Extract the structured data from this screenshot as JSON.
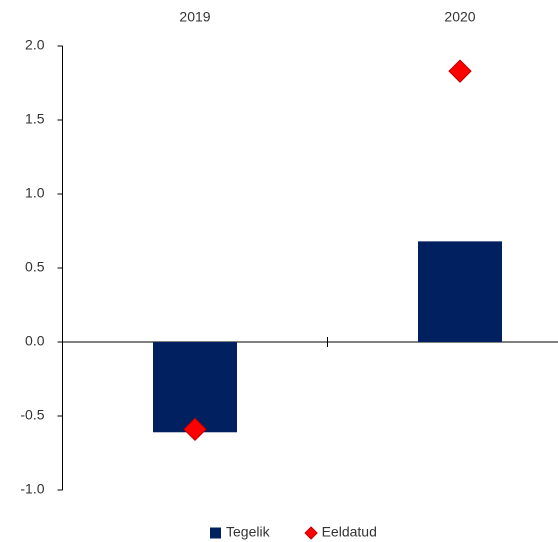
{
  "chart_data": {
    "type": "bar",
    "categories": [
      "2019",
      "2020"
    ],
    "series": [
      {
        "name": "Tegelik",
        "type": "bar",
        "color": "#002060",
        "values": [
          -0.61,
          0.68
        ]
      },
      {
        "name": "Eeldatud",
        "type": "scatter",
        "color": "#ff0000",
        "values": [
          -0.59,
          1.83
        ]
      }
    ],
    "ylim": [
      -1,
      2
    ],
    "yticks": [
      {
        "value": -1,
        "label": "-1.0"
      },
      -0.5,
      {
        "value": 0,
        "label": "0.0"
      },
      0.5,
      {
        "value": 1,
        "label": "1.0"
      },
      1.5,
      {
        "value": 2,
        "label": "2.0"
      }
    ],
    "legend": "bottom"
  }
}
